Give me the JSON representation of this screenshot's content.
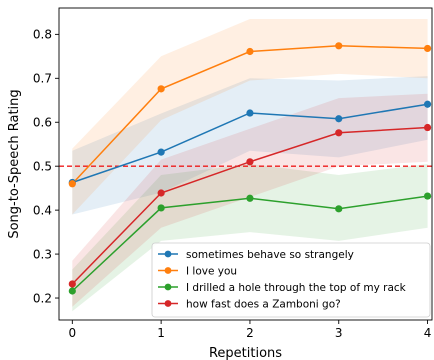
{
  "chart_data": {
    "type": "line",
    "xlabel": "Repetitions",
    "ylabel": "Song-to-Speech Rating",
    "x": [
      0,
      1,
      2,
      3,
      4
    ],
    "xlim": [
      -0.15,
      4.05
    ],
    "ylim": [
      0.15,
      0.86
    ],
    "x_ticks": [
      "0",
      "1",
      "2",
      "3",
      "4"
    ],
    "y_ticks": [
      0.2,
      0.3,
      0.4,
      0.5,
      0.6,
      0.7,
      0.8
    ],
    "y_tick_labels": [
      "0.2",
      "0.3",
      "0.4",
      "0.5",
      "0.6",
      "0.7",
      "0.8"
    ],
    "grid": false,
    "legend_position": "lower-right",
    "reference_line": {
      "y": 0.5,
      "color": "#ee1c1c",
      "style": "dashed"
    },
    "series": [
      {
        "name": "sometimes behave so strangely",
        "color": "#1f77b4",
        "values": [
          0.463,
          0.532,
          0.621,
          0.608,
          0.641
        ],
        "lower": [
          0.39,
          0.44,
          0.535,
          0.52,
          0.56
        ],
        "upper": [
          0.535,
          0.62,
          0.7,
          0.695,
          0.705
        ]
      },
      {
        "name": "I love you",
        "color": "#ff7f0e",
        "values": [
          0.46,
          0.676,
          0.761,
          0.774,
          0.768
        ],
        "lower": [
          0.39,
          0.605,
          0.695,
          0.71,
          0.7
        ],
        "upper": [
          0.54,
          0.75,
          0.835,
          0.835,
          0.835
        ]
      },
      {
        "name": "I drilled a hole through the top of my rack",
        "color": "#2ca02c",
        "values": [
          0.216,
          0.405,
          0.427,
          0.403,
          0.432
        ],
        "lower": [
          0.17,
          0.33,
          0.35,
          0.33,
          0.36
        ],
        "upper": [
          0.265,
          0.48,
          0.505,
          0.48,
          0.505
        ]
      },
      {
        "name": "how fast does a Zamboni go?",
        "color": "#d62728",
        "values": [
          0.232,
          0.439,
          0.51,
          0.576,
          0.588
        ],
        "lower": [
          0.18,
          0.36,
          0.43,
          0.5,
          0.51
        ],
        "upper": [
          0.285,
          0.515,
          0.585,
          0.655,
          0.665
        ]
      }
    ]
  }
}
